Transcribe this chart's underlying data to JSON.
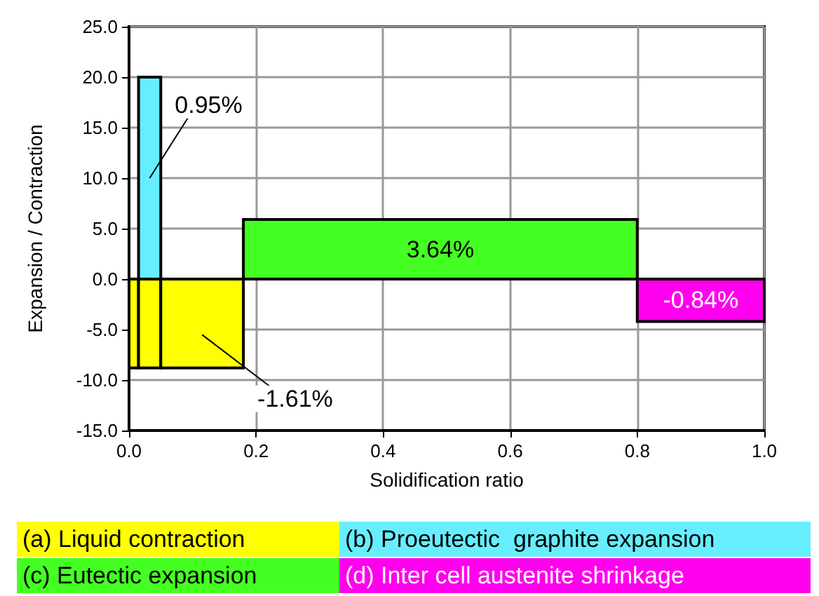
{
  "chart_data": {
    "type": "histogram",
    "xlabel": "Solidification ratio",
    "ylabel": "Expansion / Contraction",
    "bins": [
      0,
      0.015,
      0.05,
      0.18,
      0.8,
      1
    ],
    "xlim": [
      0,
      1
    ],
    "xticks": [
      {
        "value": 0,
        "label": "0.0"
      },
      {
        "value": 0.2,
        "label": "0.2"
      },
      {
        "value": 0.4,
        "label": "0.4"
      },
      {
        "value": 0.6,
        "label": "0.6"
      },
      {
        "value": 0.8,
        "label": "0.8"
      },
      {
        "value": 1,
        "label": "1.0"
      }
    ],
    "ylim": [
      -15,
      25
    ],
    "yticks": [
      {
        "value": -15,
        "label": "-15.0"
      },
      {
        "value": -10,
        "label": "-10.0"
      },
      {
        "value": -5,
        "label": "-5.0"
      },
      {
        "value": 0,
        "label": "0.0"
      },
      {
        "value": 5,
        "label": "5.0"
      },
      {
        "value": 10,
        "label": "10.0"
      },
      {
        "value": 15,
        "label": "15.0"
      },
      {
        "value": 20,
        "label": "20.0"
      },
      {
        "value": 25,
        "label": "25.0"
      }
    ],
    "grid": true,
    "legend": "bottom",
    "series": [
      {
        "name": "(a) Liquid contraction",
        "color": "#ffff00",
        "values": [
          -8.8,
          -8.8,
          -8.8,
          null,
          null
        ]
      },
      {
        "name": "(b) Proeutectic  graphite expansion",
        "color": "#66eeff",
        "values": [
          null,
          20,
          null,
          null,
          null
        ]
      },
      {
        "name": "(c) Eutectic expansion",
        "color": "#44ff22",
        "values": [
          null,
          null,
          null,
          5.9,
          null
        ]
      },
      {
        "name": "(d) Inter cell austenite shrinkage",
        "color": "#ff00ee",
        "values": [
          null,
          null,
          null,
          null,
          -4.2
        ]
      }
    ],
    "annotations": [
      {
        "text": "0.95%",
        "x": 0.0325,
        "y": 20
      },
      {
        "text": "3.64%",
        "x": 0.49,
        "y": 5.9
      },
      {
        "text": "-0.84%",
        "x": 0.9,
        "y": -4.2
      },
      {
        "text": "-1.61%",
        "x": 0.115,
        "y": -8.8
      }
    ]
  }
}
